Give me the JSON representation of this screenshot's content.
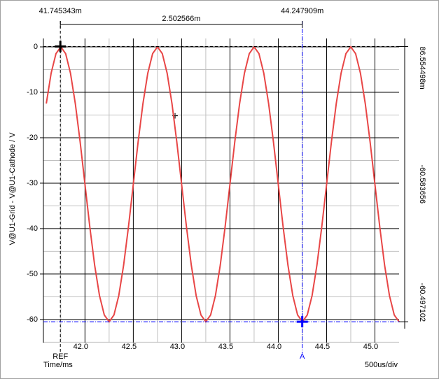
{
  "chart_data": {
    "type": "line",
    "y_label": "V@U1-Grid - V@U1-Cathode / V",
    "x_label": "Time/ms",
    "x_scale_label": "500us/div",
    "xlim": [
      41.57,
      45.25
    ],
    "ylim": [
      -65.1,
      1.85
    ],
    "xticks": [
      {
        "value": 42,
        "label": "42.0"
      },
      {
        "value": 42.5,
        "label": "42.5"
      },
      {
        "value": 43,
        "label": "43.0"
      },
      {
        "value": 43.5,
        "label": "43.5"
      },
      {
        "value": 44,
        "label": "44.0"
      },
      {
        "value": 44.5,
        "label": "44.5"
      },
      {
        "value": 45,
        "label": "45.0"
      }
    ],
    "yticks": [
      0,
      -10,
      -20,
      -30,
      -40,
      -50,
      -60
    ],
    "x_minor_grid": [
      41.75,
      42.25,
      42.75,
      43.25,
      43.75,
      44.25,
      44.75
    ],
    "y_minor_grid": [
      -5,
      -15,
      -25,
      -35,
      -45,
      -55,
      -65
    ],
    "grid": true,
    "color": "#e84646",
    "x": [
      41.6,
      41.65,
      41.7,
      41.75,
      41.8,
      41.85,
      41.9,
      41.95,
      42.0,
      42.05,
      42.1,
      42.15,
      42.2,
      42.25,
      42.3,
      42.35,
      42.4,
      42.45,
      42.5,
      42.55,
      42.6,
      42.65,
      42.7,
      42.75,
      42.8,
      42.85,
      42.9,
      42.95,
      43.0,
      43.05,
      43.1,
      43.15,
      43.2,
      43.25,
      43.3,
      43.35,
      43.4,
      43.45,
      43.5,
      43.55,
      43.6,
      43.65,
      43.7,
      43.75,
      43.8,
      43.85,
      43.9,
      43.95,
      44.0,
      44.05,
      44.1,
      44.15,
      44.2,
      44.25,
      44.3,
      44.35,
      44.4,
      44.45,
      44.5,
      44.55,
      44.6,
      44.65,
      44.7,
      44.75,
      44.8,
      44.85,
      44.9,
      44.95,
      45.0,
      45.05,
      45.1,
      45.15,
      45.2,
      45.25
    ],
    "values": [
      -12.47,
      -5.78,
      -1.48,
      0,
      -1.48,
      -5.78,
      -12.47,
      -20.9,
      -30.25,
      -39.6,
      -48.03,
      -54.72,
      -59.02,
      -60.5,
      -59.02,
      -54.72,
      -48.03,
      -39.6,
      -30.25,
      -20.9,
      -12.47,
      -5.78,
      -1.48,
      0,
      -1.48,
      -5.78,
      -12.47,
      -20.9,
      -30.25,
      -39.6,
      -48.03,
      -54.72,
      -59.02,
      -60.5,
      -59.02,
      -54.72,
      -48.03,
      -39.6,
      -30.25,
      -20.9,
      -12.47,
      -5.78,
      -1.48,
      0,
      -1.48,
      -5.78,
      -12.47,
      -20.9,
      -30.25,
      -39.6,
      -48.03,
      -54.72,
      -59.02,
      -60.5,
      -59.02,
      -54.72,
      -48.03,
      -39.6,
      -30.25,
      -20.9,
      -12.47,
      -5.78,
      -1.48,
      0,
      -1.48,
      -5.78,
      -12.47,
      -20.9,
      -30.25,
      -39.6,
      -48.03,
      -54.72,
      -59.02,
      -60.5
    ],
    "cursors": [
      {
        "name": "REF",
        "color": "#000000",
        "x": {
          "value": 41.745343,
          "label": "41.745343m"
        },
        "y": {
          "value": 0.086554498,
          "label": "86.554498m"
        }
      },
      {
        "name": "A",
        "color": "#0000ff",
        "x": {
          "value": 44.247909,
          "label": "44.247909m"
        },
        "y": {
          "value": -60.497102,
          "label": "-60.497102"
        }
      }
    ],
    "cursor_delta": {
      "x": {
        "value": 2.502566,
        "label": "2.502566m"
      },
      "y": {
        "value": -60.583656,
        "label": "-60.583656"
      }
    }
  }
}
